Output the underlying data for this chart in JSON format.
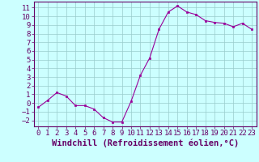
{
  "x": [
    0,
    1,
    2,
    3,
    4,
    5,
    6,
    7,
    8,
    9,
    10,
    11,
    12,
    13,
    14,
    15,
    16,
    17,
    18,
    19,
    20,
    21,
    22,
    23
  ],
  "y": [
    -0.5,
    0.3,
    1.2,
    0.8,
    -0.3,
    -0.3,
    -0.7,
    -1.7,
    -2.2,
    -2.2,
    0.2,
    3.2,
    5.2,
    8.5,
    10.5,
    11.2,
    10.5,
    10.2,
    9.5,
    9.3,
    9.2,
    8.8,
    9.2,
    8.5
  ],
  "xlabel": "Windchill (Refroidissement éolien,°C)",
  "xlim": [
    -0.5,
    23.5
  ],
  "ylim": [
    -2.7,
    11.7
  ],
  "yticks": [
    -2,
    -1,
    0,
    1,
    2,
    3,
    4,
    5,
    6,
    7,
    8,
    9,
    10,
    11
  ],
  "xticks": [
    0,
    1,
    2,
    3,
    4,
    5,
    6,
    7,
    8,
    9,
    10,
    11,
    12,
    13,
    14,
    15,
    16,
    17,
    18,
    19,
    20,
    21,
    22,
    23
  ],
  "line_color": "#990099",
  "marker_color": "#990099",
  "bg_color": "#ccffff",
  "grid_color": "#99cccc",
  "tick_label_color": "#660066",
  "xlabel_color": "#660066",
  "font_size_ticks": 6.5,
  "font_size_xlabel": 7.5
}
